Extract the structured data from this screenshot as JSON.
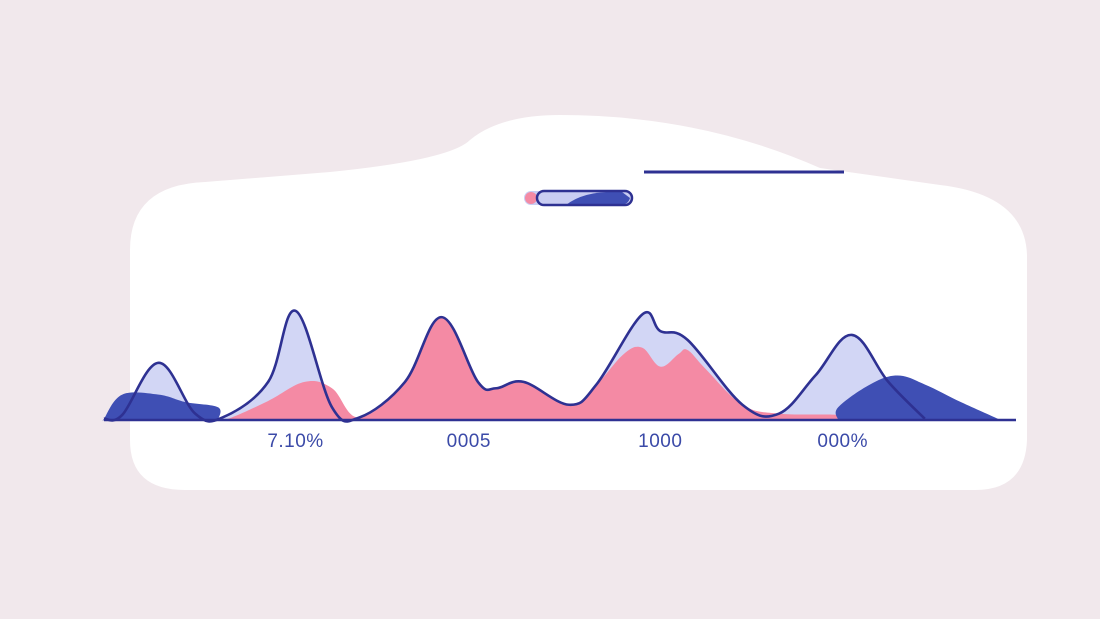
{
  "colors": {
    "background": "#f1e8ec",
    "card": "#ffffff",
    "outline": "#2e3192",
    "pink": "#f48aa4",
    "lavender": "#d2d6f5",
    "navy": "#3f4fb4",
    "tick_text": "#3b4aa8"
  },
  "legend": {
    "indicator": {
      "dot_color": "#f48aa4",
      "track_color": "#c9cdf2",
      "fill_color": "#3f4fb4"
    },
    "header_rule_color": "#2e3192"
  },
  "chart_data": {
    "type": "area",
    "x_range": [
      0,
      100
    ],
    "y_range": [
      0,
      100
    ],
    "grid": false,
    "tick_labels": [
      {
        "x": 21,
        "label": "7.10%"
      },
      {
        "x": 40,
        "label": "0005"
      },
      {
        "x": 61,
        "label": "1000"
      },
      {
        "x": 81,
        "label": "000%"
      }
    ],
    "series": [
      {
        "role": "outline",
        "color": "#2e3192",
        "points": [
          [
            0,
            1
          ],
          [
            2,
            4
          ],
          [
            6,
            45
          ],
          [
            10,
            5
          ],
          [
            13,
            2
          ],
          [
            18,
            30
          ],
          [
            21,
            86
          ],
          [
            25,
            10
          ],
          [
            28,
            2
          ],
          [
            33,
            30
          ],
          [
            37,
            81
          ],
          [
            41,
            30
          ],
          [
            43,
            25
          ],
          [
            46,
            30
          ],
          [
            51,
            12
          ],
          [
            54,
            28
          ],
          [
            59,
            83
          ],
          [
            61,
            70
          ],
          [
            64,
            63
          ],
          [
            70,
            12
          ],
          [
            74,
            5
          ],
          [
            78,
            35
          ],
          [
            82,
            67
          ],
          [
            86,
            30
          ],
          [
            90,
            1
          ]
        ]
      },
      {
        "role": "lavender-fill",
        "color": "#d2d6f5",
        "points": [
          [
            0,
            1
          ],
          [
            2,
            4
          ],
          [
            6,
            45
          ],
          [
            10,
            5
          ],
          [
            13,
            2
          ],
          [
            18,
            30
          ],
          [
            21,
            86
          ],
          [
            25,
            10
          ],
          [
            28,
            2
          ],
          [
            33,
            30
          ],
          [
            37,
            81
          ],
          [
            41,
            30
          ],
          [
            43,
            25
          ],
          [
            46,
            30
          ],
          [
            51,
            12
          ],
          [
            54,
            28
          ],
          [
            59,
            83
          ],
          [
            61,
            70
          ],
          [
            64,
            63
          ],
          [
            70,
            12
          ],
          [
            74,
            5
          ],
          [
            78,
            35
          ],
          [
            82,
            67
          ],
          [
            86,
            30
          ],
          [
            90,
            1
          ]
        ]
      },
      {
        "role": "pink-fill",
        "color": "#f48aa4",
        "points": [
          [
            12.5,
            0
          ],
          [
            14,
            2
          ],
          [
            18,
            15
          ],
          [
            22,
            30
          ],
          [
            25,
            25
          ],
          [
            28,
            2
          ],
          [
            33,
            30
          ],
          [
            37,
            81
          ],
          [
            41,
            30
          ],
          [
            43,
            25
          ],
          [
            46,
            30
          ],
          [
            51,
            12
          ],
          [
            54,
            28
          ],
          [
            57,
            52
          ],
          [
            59,
            57
          ],
          [
            61,
            42
          ],
          [
            63,
            52
          ],
          [
            64,
            55
          ],
          [
            66,
            40
          ],
          [
            70,
            12
          ],
          [
            74,
            5
          ],
          [
            80.5,
            4
          ],
          [
            80.5,
            0
          ]
        ]
      },
      {
        "role": "navy-fill",
        "color": "#3f4fb4",
        "segments": [
          [
            [
              0,
              0
            ],
            [
              0,
              1
            ],
            [
              2,
              20
            ],
            [
              6,
              20
            ],
            [
              9,
              14
            ],
            [
              12.5,
              10
            ],
            [
              12.5,
              0
            ]
          ],
          [
            [
              80.5,
              0
            ],
            [
              80.5,
              10
            ],
            [
              84,
              28
            ],
            [
              87,
              35
            ],
            [
              90,
              28
            ],
            [
              94,
              14
            ],
            [
              98,
              1
            ],
            [
              98,
              0
            ]
          ]
        ]
      }
    ]
  }
}
